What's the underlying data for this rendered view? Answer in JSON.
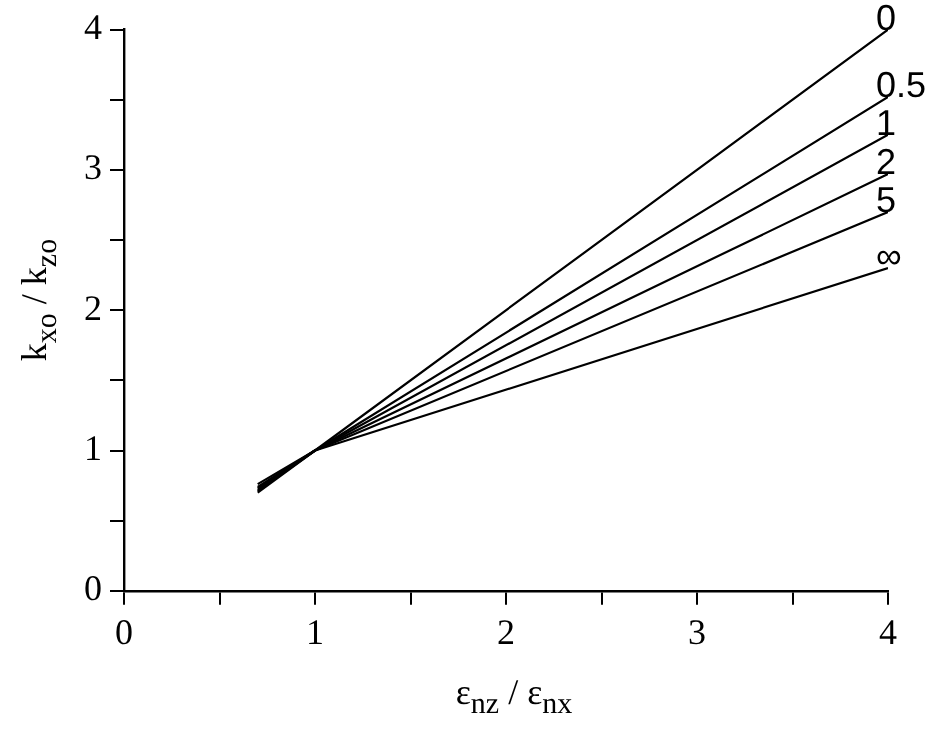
{
  "chart_data": {
    "type": "line",
    "xlabel": "ε$_{nz}$ / ε$_{nx}$",
    "ylabel": "k$_{xo}$ / k$_{zo}$",
    "xlim": [
      0,
      4
    ],
    "ylim": [
      0,
      4
    ],
    "xticks": [
      0,
      {
        "value": 0.5,
        "label": null
      },
      1,
      {
        "value": 1.5,
        "label": null
      },
      2,
      {
        "value": 2.5,
        "label": null
      },
      3,
      {
        "value": 3.5,
        "label": null
      },
      4
    ],
    "yticks": [
      0,
      {
        "value": 0.5,
        "label": null
      },
      1,
      {
        "value": 1.5,
        "label": null
      },
      2,
      {
        "value": 2.5,
        "label": null
      },
      3,
      {
        "value": 3.5,
        "label": null
      },
      4
    ],
    "grid": false,
    "legend": false,
    "marker": "none",
    "line_style": "solid",
    "series": [
      {
        "name": "0",
        "color": "#000000",
        "x": [
          0.7,
          1,
          4
        ],
        "values": [
          0.7,
          1,
          4.0
        ]
      },
      {
        "name": "0.5",
        "color": "#000000",
        "x": [
          0.7,
          1,
          4
        ],
        "values": [
          0.71,
          1,
          3.52
        ]
      },
      {
        "name": "1",
        "color": "#000000",
        "x": [
          0.7,
          1,
          4
        ],
        "values": [
          0.72,
          1,
          3.25
        ]
      },
      {
        "name": "2",
        "color": "#000000",
        "x": [
          0.7,
          1,
          4
        ],
        "values": [
          0.73,
          1,
          2.97
        ]
      },
      {
        "name": "5",
        "color": "#000000",
        "x": [
          0.7,
          1,
          4
        ],
        "values": [
          0.74,
          1,
          2.7
        ]
      },
      {
        "name": "∞",
        "color": "#000000",
        "x": [
          0.7,
          1,
          4
        ],
        "values": [
          0.76,
          1,
          2.3
        ]
      }
    ]
  }
}
